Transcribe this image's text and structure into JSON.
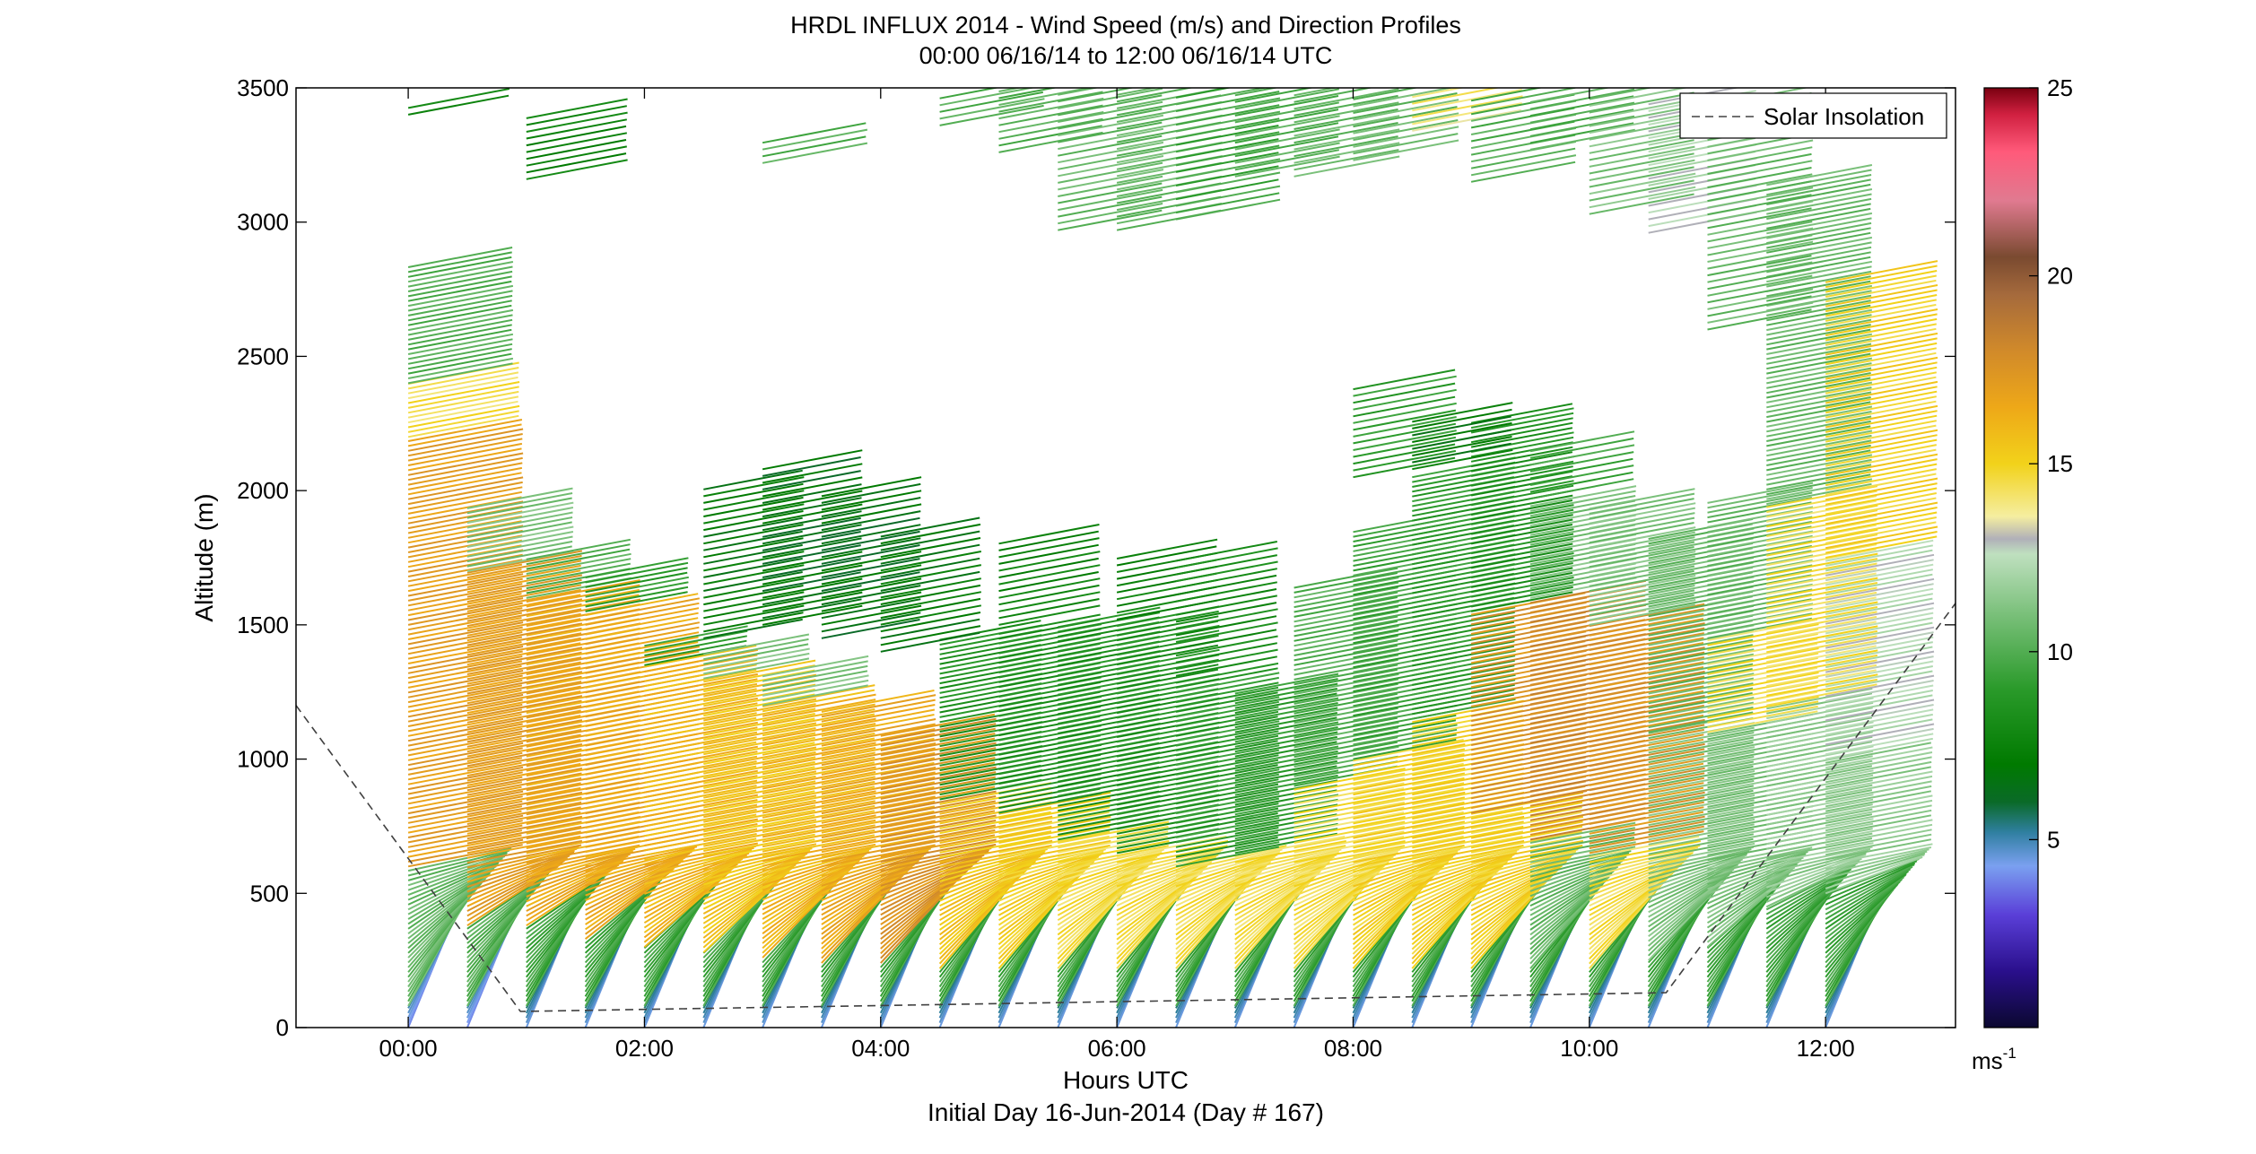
{
  "chart_data": {
    "type": "wind-barb-profile",
    "title_line1": "HRDL INFLUX 2014 - Wind Speed (m/s) and Direction Profiles",
    "title_line2": "00:00 06/16/14 to 12:00 06/16/14  UTC",
    "xlabel": "Hours UTC",
    "xlabel_sub": "Initial Day 16-Jun-2014 (Day # 167)",
    "ylabel": "Altitude (m)",
    "x_unit": "hours UTC",
    "xlim": [
      -0.95,
      13.1
    ],
    "ylim": [
      0,
      3500
    ],
    "x_ticks": [
      {
        "value": 0,
        "label": "00:00"
      },
      {
        "value": 2,
        "label": "02:00"
      },
      {
        "value": 4,
        "label": "04:00"
      },
      {
        "value": 6,
        "label": "06:00"
      },
      {
        "value": 8,
        "label": "08:00"
      },
      {
        "value": 10,
        "label": "10:00"
      },
      {
        "value": 12,
        "label": "12:00"
      }
    ],
    "y_ticks": [
      {
        "value": 0,
        "label": "0"
      },
      {
        "value": 500,
        "label": "500"
      },
      {
        "value": 1000,
        "label": "1000"
      },
      {
        "value": 1500,
        "label": "1500"
      },
      {
        "value": 2000,
        "label": "2000"
      },
      {
        "value": 2500,
        "label": "2500"
      },
      {
        "value": 3000,
        "label": "3000"
      },
      {
        "value": 3500,
        "label": "3500"
      }
    ],
    "legend": {
      "label": "Solar Insolation",
      "position": "top-right"
    },
    "solar_insolation_line": [
      {
        "x": -0.95,
        "y": 1200
      },
      {
        "x": 0.95,
        "y": 60
      },
      {
        "x": 10.65,
        "y": 130
      },
      {
        "x": 13.1,
        "y": 1580
      }
    ],
    "colorbar": {
      "range": [
        0,
        25
      ],
      "ticks": [
        {
          "value": 5,
          "label": "5"
        },
        {
          "value": 10,
          "label": "10"
        },
        {
          "value": 15,
          "label": "15"
        },
        {
          "value": 20,
          "label": "20"
        },
        {
          "value": 25,
          "label": "25"
        }
      ],
      "unit_label": "ms",
      "unit_exponent": "-1",
      "stops": [
        {
          "value": 0,
          "color": "#0b0830"
        },
        {
          "value": 1.5,
          "color": "#2a0f8c"
        },
        {
          "value": 3,
          "color": "#5a3fd8"
        },
        {
          "value": 4.3,
          "color": "#7aa0f0"
        },
        {
          "value": 5.2,
          "color": "#2f7fa0"
        },
        {
          "value": 6,
          "color": "#0a6a28"
        },
        {
          "value": 7,
          "color": "#007a00"
        },
        {
          "value": 9,
          "color": "#2a9a2a"
        },
        {
          "value": 11,
          "color": "#7ac07a"
        },
        {
          "value": 12.6,
          "color": "#bfe0bf"
        },
        {
          "value": 13,
          "color": "#b0b0b8"
        },
        {
          "value": 13.6,
          "color": "#f5eea0"
        },
        {
          "value": 15,
          "color": "#f2d21a"
        },
        {
          "value": 16.5,
          "color": "#eea818"
        },
        {
          "value": 18,
          "color": "#d18a2a"
        },
        {
          "value": 19.5,
          "color": "#a56a3c"
        },
        {
          "value": 20.5,
          "color": "#7a4a30"
        },
        {
          "value": 22,
          "color": "#e07a90"
        },
        {
          "value": 23.3,
          "color": "#ff5a7a"
        },
        {
          "value": 24.3,
          "color": "#d02040"
        },
        {
          "value": 25,
          "color": "#7a0010"
        }
      ]
    },
    "profiles": [
      {
        "time": 0.0,
        "top": 2850,
        "segments": [
          {
            "upTo": 80,
            "speed": 4.5
          },
          {
            "upTo": 600,
            "speed": 10.5
          },
          {
            "upTo": 2200,
            "speed": 17
          },
          {
            "upTo": 2400,
            "speed": 14.5
          },
          {
            "upTo": 2850,
            "speed": 10
          }
        ]
      },
      {
        "time": 0.5,
        "top": 1950,
        "segments": [
          {
            "upTo": 80,
            "speed": 4.5
          },
          {
            "upTo": 380,
            "speed": 10
          },
          {
            "upTo": 1700,
            "speed": 17
          },
          {
            "upTo": 1950,
            "speed": 11
          }
        ]
      },
      {
        "time": 1.0,
        "top": 1750,
        "segments": [
          {
            "upTo": 80,
            "speed": 5
          },
          {
            "upTo": 380,
            "speed": 9.5
          },
          {
            "upTo": 1600,
            "speed": 16.5
          },
          {
            "upTo": 1750,
            "speed": 10
          }
        ]
      },
      {
        "time": 1.5,
        "top": 1680,
        "segments": [
          {
            "upTo": 80,
            "speed": 5
          },
          {
            "upTo": 330,
            "speed": 9.5
          },
          {
            "upTo": 1550,
            "speed": 16.5
          },
          {
            "upTo": 1680,
            "speed": 9
          }
        ]
      },
      {
        "time": 2.0,
        "top": 1440,
        "segments": [
          {
            "upTo": 80,
            "speed": 5
          },
          {
            "upTo": 300,
            "speed": 9.5
          },
          {
            "upTo": 1350,
            "speed": 16
          },
          {
            "upTo": 1440,
            "speed": 9
          }
        ]
      },
      {
        "time": 2.5,
        "top": 1400,
        "segments": [
          {
            "upTo": 80,
            "speed": 5
          },
          {
            "upTo": 280,
            "speed": 9.5
          },
          {
            "upTo": 1300,
            "speed": 15.5
          },
          {
            "upTo": 1400,
            "speed": 11
          }
        ]
      },
      {
        "time": 3.0,
        "top": 1310,
        "segments": [
          {
            "upTo": 80,
            "speed": 5
          },
          {
            "upTo": 260,
            "speed": 9.5
          },
          {
            "upTo": 1200,
            "speed": 16
          },
          {
            "upTo": 1310,
            "speed": 11
          }
        ]
      },
      {
        "time": 3.5,
        "top": 1180,
        "segments": [
          {
            "upTo": 80,
            "speed": 5
          },
          {
            "upTo": 240,
            "speed": 9.5
          },
          {
            "upTo": 1180,
            "speed": 16.5
          }
        ]
      },
      {
        "time": 4.0,
        "top": 1100,
        "segments": [
          {
            "upTo": 80,
            "speed": 5
          },
          {
            "upTo": 240,
            "speed": 9.5
          },
          {
            "upTo": 1100,
            "speed": 17.5
          }
        ]
      },
      {
        "time": 4.5,
        "top": 1450,
        "segments": [
          {
            "upTo": 80,
            "speed": 5
          },
          {
            "upTo": 220,
            "speed": 9.5
          },
          {
            "upTo": 850,
            "speed": 15.5
          },
          {
            "upTo": 1450,
            "speed": 8.5
          }
        ]
      },
      {
        "time": 5.0,
        "top": 1480,
        "segments": [
          {
            "upTo": 80,
            "speed": 5
          },
          {
            "upTo": 220,
            "speed": 9.5
          },
          {
            "upTo": 800,
            "speed": 15
          },
          {
            "upTo": 1480,
            "speed": 8.5
          }
        ]
      },
      {
        "time": 5.5,
        "top": 1500,
        "segments": [
          {
            "upTo": 80,
            "speed": 5
          },
          {
            "upTo": 220,
            "speed": 9.5
          },
          {
            "upTo": 700,
            "speed": 14.5
          },
          {
            "upTo": 1500,
            "speed": 8.5
          }
        ]
      },
      {
        "time": 6.0,
        "top": 1510,
        "segments": [
          {
            "upTo": 80,
            "speed": 5
          },
          {
            "upTo": 220,
            "speed": 9.5
          },
          {
            "upTo": 650,
            "speed": 14.5
          },
          {
            "upTo": 1510,
            "speed": 8.5
          }
        ]
      },
      {
        "time": 6.5,
        "top": 1300,
        "segments": [
          {
            "upTo": 80,
            "speed": 5
          },
          {
            "upTo": 220,
            "speed": 9.5
          },
          {
            "upTo": 600,
            "speed": 14.5
          },
          {
            "upTo": 1300,
            "speed": 9
          }
        ]
      },
      {
        "time": 7.0,
        "top": 1250,
        "segments": [
          {
            "upTo": 80,
            "speed": 5
          },
          {
            "upTo": 220,
            "speed": 9.5
          },
          {
            "upTo": 650,
            "speed": 14.5
          },
          {
            "upTo": 1250,
            "speed": 9
          }
        ]
      },
      {
        "time": 7.5,
        "top": 1650,
        "segments": [
          {
            "upTo": 80,
            "speed": 5
          },
          {
            "upTo": 220,
            "speed": 9.5
          },
          {
            "upTo": 900,
            "speed": 14.5
          },
          {
            "upTo": 1650,
            "speed": 10
          }
        ]
      },
      {
        "time": 8.0,
        "top": 1850,
        "segments": [
          {
            "upTo": 80,
            "speed": 5
          },
          {
            "upTo": 220,
            "speed": 9.5
          },
          {
            "upTo": 1000,
            "speed": 15
          },
          {
            "upTo": 1850,
            "speed": 9.5
          }
        ]
      },
      {
        "time": 8.5,
        "top": 2060,
        "segments": [
          {
            "upTo": 80,
            "speed": 5
          },
          {
            "upTo": 220,
            "speed": 9.5
          },
          {
            "upTo": 1150,
            "speed": 15
          },
          {
            "upTo": 2060,
            "speed": 9
          }
        ]
      },
      {
        "time": 9.0,
        "top": 2270,
        "segments": [
          {
            "upTo": 80,
            "speed": 5
          },
          {
            "upTo": 220,
            "speed": 9.5
          },
          {
            "upTo": 800,
            "speed": 15
          },
          {
            "upTo": 1550,
            "speed": 17.5
          },
          {
            "upTo": 2270,
            "speed": 8.5
          }
        ]
      },
      {
        "time": 9.5,
        "top": 1950,
        "segments": [
          {
            "upTo": 80,
            "speed": 5
          },
          {
            "upTo": 220,
            "speed": 9.5
          },
          {
            "upTo": 700,
            "speed": 10.5
          },
          {
            "upTo": 1600,
            "speed": 18
          },
          {
            "upTo": 1950,
            "speed": 11
          }
        ]
      },
      {
        "time": 10.0,
        "top": 1950,
        "segments": [
          {
            "upTo": 80,
            "speed": 5
          },
          {
            "upTo": 220,
            "speed": 9.5
          },
          {
            "upTo": 650,
            "speed": 14.5
          },
          {
            "upTo": 1500,
            "speed": 17.5
          },
          {
            "upTo": 1950,
            "speed": 11
          }
        ]
      },
      {
        "time": 10.5,
        "top": 1830,
        "segments": [
          {
            "upTo": 80,
            "speed": 5
          },
          {
            "upTo": 250,
            "speed": 9.5
          },
          {
            "upTo": 1100,
            "speed": 11
          },
          {
            "upTo": 1830,
            "speed": 10.5
          }
        ]
      },
      {
        "time": 11.0,
        "top": 1960,
        "segments": [
          {
            "upTo": 80,
            "speed": 5
          },
          {
            "upTo": 300,
            "speed": 9.5
          },
          {
            "upTo": 1100,
            "speed": 11
          },
          {
            "upTo": 1450,
            "speed": 14.5
          },
          {
            "upTo": 1960,
            "speed": 10.5
          }
        ]
      },
      {
        "time": 11.5,
        "top": 3150,
        "segments": [
          {
            "upTo": 80,
            "speed": 5
          },
          {
            "upTo": 450,
            "speed": 9.5
          },
          {
            "upTo": 1200,
            "speed": 11.5
          },
          {
            "upTo": 1950,
            "speed": 14.5
          },
          {
            "upTo": 3150,
            "speed": 10.5
          }
        ]
      },
      {
        "time": 12.0,
        "top": 2780,
        "segments": [
          {
            "upTo": 80,
            "speed": 5
          },
          {
            "upTo": 500,
            "speed": 9.5
          },
          {
            "upTo": 1000,
            "speed": 11.5
          },
          {
            "upTo": 1750,
            "speed": 12.5
          },
          {
            "upTo": 2780,
            "speed": 15
          }
        ]
      }
    ],
    "upper_patches": [
      {
        "time": 0.0,
        "from": 3400,
        "to": 3440,
        "speed": 8
      },
      {
        "time": 1.0,
        "from": 3160,
        "to": 3410,
        "speed": 7.5
      },
      {
        "time": 3.0,
        "from": 3220,
        "to": 3320,
        "speed": 10
      },
      {
        "time": 2.5,
        "from": 1450,
        "to": 2020,
        "speed": 7
      },
      {
        "time": 3.0,
        "from": 1500,
        "to": 2100,
        "speed": 6.5
      },
      {
        "time": 3.5,
        "from": 1450,
        "to": 1980,
        "speed": 6.5
      },
      {
        "time": 4.0,
        "from": 1400,
        "to": 1850,
        "speed": 7
      },
      {
        "time": 5.0,
        "from": 1500,
        "to": 1820,
        "speed": 7.5
      },
      {
        "time": 6.0,
        "from": 1520,
        "to": 1750,
        "speed": 7.5
      },
      {
        "time": 6.5,
        "from": 1310,
        "to": 1740,
        "speed": 8
      },
      {
        "time": 8.0,
        "from": 2050,
        "to": 2380,
        "speed": 9
      },
      {
        "time": 8.5,
        "from": 2080,
        "to": 2270,
        "speed": 7
      },
      {
        "time": 9.5,
        "from": 1970,
        "to": 2170,
        "speed": 9.5
      },
      {
        "time": 4.5,
        "from": 3360,
        "to": 3470,
        "speed": 10
      },
      {
        "time": 5.0,
        "from": 3260,
        "to": 3490,
        "speed": 10
      },
      {
        "time": 5.5,
        "from": 2970,
        "to": 3490,
        "speed": 10.5
      },
      {
        "time": 6.0,
        "from": 2970,
        "to": 3480,
        "speed": 10.5
      },
      {
        "time": 6.5,
        "from": 3010,
        "to": 3480,
        "speed": 9.5
      },
      {
        "time": 7.0,
        "from": 3170,
        "to": 3480,
        "speed": 10
      },
      {
        "time": 7.5,
        "from": 3170,
        "to": 3480,
        "speed": 10.5
      },
      {
        "time": 8.0,
        "from": 3230,
        "to": 3480,
        "speed": 10.5
      },
      {
        "time": 8.5,
        "from": 3340,
        "to": 3470,
        "speed": 14
      },
      {
        "time": 9.0,
        "from": 3150,
        "to": 3460,
        "speed": 10
      },
      {
        "time": 9.5,
        "from": 3270,
        "to": 3460,
        "speed": 10
      },
      {
        "time": 10.0,
        "from": 3030,
        "to": 3460,
        "speed": 11
      },
      {
        "time": 10.5,
        "from": 2960,
        "to": 3450,
        "speed": 12.5
      },
      {
        "time": 11.0,
        "from": 2600,
        "to": 3450,
        "speed": 10.5
      }
    ]
  }
}
